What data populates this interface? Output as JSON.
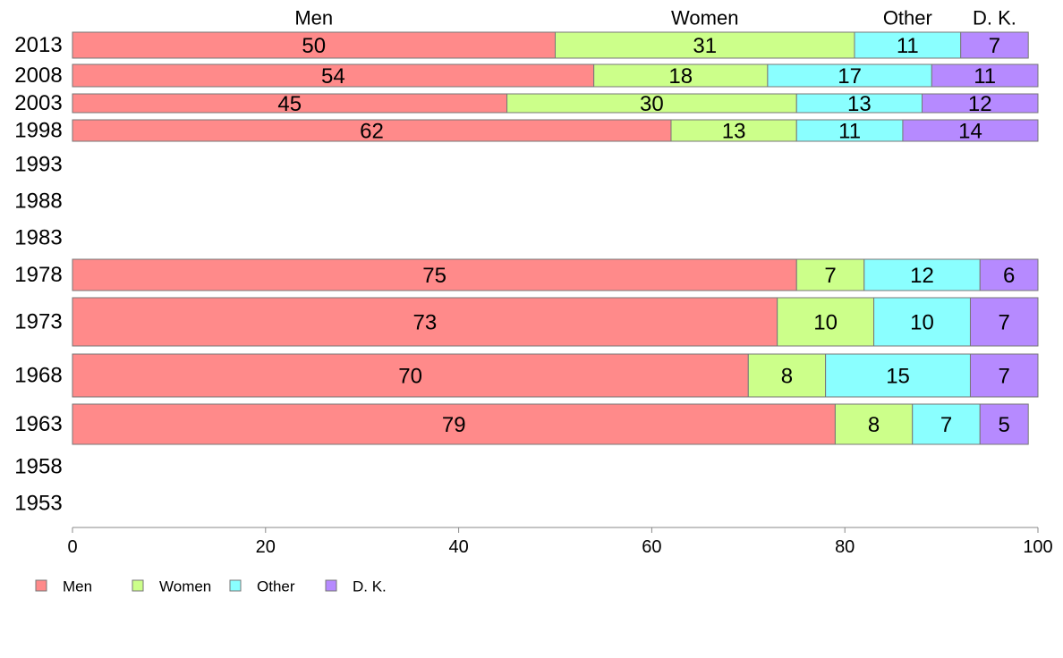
{
  "chart_data": {
    "type": "bar",
    "orientation": "horizontal",
    "stacked": true,
    "title": "",
    "xlabel": "",
    "ylabel": "",
    "xlim": [
      0,
      100
    ],
    "x_ticks": [
      "0",
      "20",
      "40",
      "60",
      "80",
      "100"
    ],
    "categories": [
      "2013",
      "2008",
      "2003",
      "1998",
      "1993",
      "1988",
      "1983",
      "1978",
      "1973",
      "1968",
      "1963",
      "1958",
      "1953"
    ],
    "series": [
      {
        "name": "Men",
        "color": "#ff8a8a",
        "values": [
          50,
          54,
          45,
          62,
          null,
          null,
          null,
          75,
          73,
          70,
          79,
          null,
          null
        ]
      },
      {
        "name": "Women",
        "color": "#ccff8a",
        "values": [
          31,
          18,
          30,
          13,
          null,
          null,
          null,
          7,
          10,
          8,
          8,
          null,
          null
        ]
      },
      {
        "name": "Other",
        "color": "#8affff",
        "values": [
          11,
          17,
          13,
          11,
          null,
          null,
          null,
          12,
          10,
          15,
          7,
          null,
          null
        ]
      },
      {
        "name": "D. K.",
        "color": "#b68aff",
        "values": [
          7,
          11,
          12,
          14,
          null,
          null,
          null,
          6,
          7,
          7,
          5,
          null,
          null
        ]
      }
    ],
    "legend": {
      "position": "bottom-left",
      "labels": [
        "Men",
        "Women",
        "Other",
        "D. K."
      ]
    },
    "grid": false
  }
}
